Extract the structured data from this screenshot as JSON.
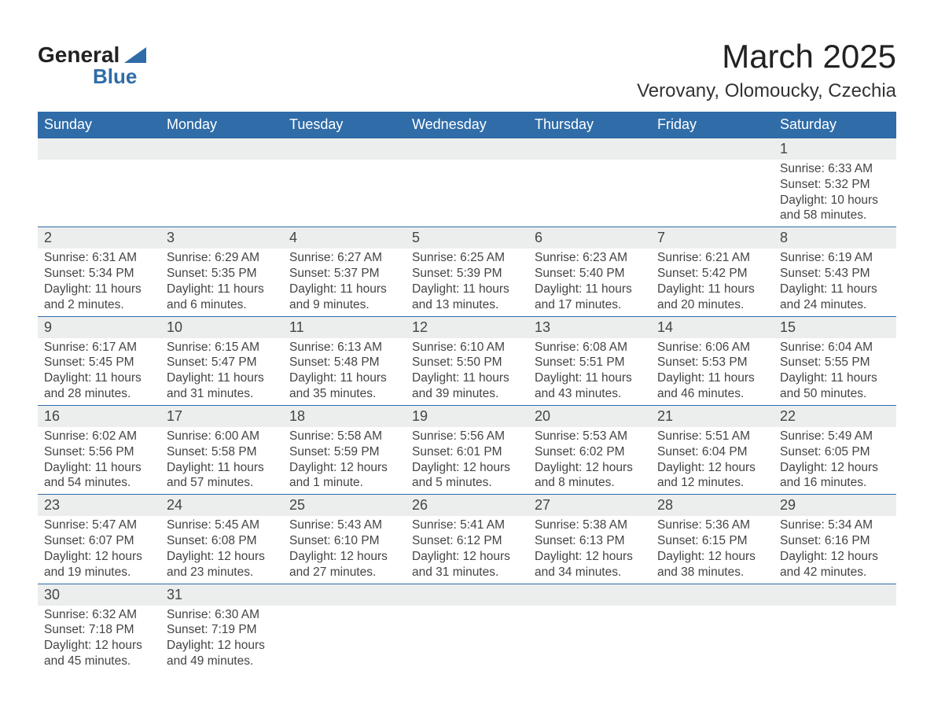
{
  "brand": {
    "name_top": "General",
    "name_bottom": "Blue",
    "accent": "#2f6ca8"
  },
  "title": "March 2025",
  "location": "Verovany, Olomoucky, Czechia",
  "colors": {
    "header_bg": "#2f6ca8",
    "header_fg": "#ffffff",
    "daynum_bg": "#eceeee",
    "text": "#444444",
    "row_border": "#2f6ca8",
    "page_bg": "#ffffff"
  },
  "fonts": {
    "title_pt": 42,
    "location_pt": 24,
    "dayname_pt": 18,
    "daynum_pt": 18,
    "body_pt": 15.5
  },
  "day_names": [
    "Sunday",
    "Monday",
    "Tuesday",
    "Wednesday",
    "Thursday",
    "Friday",
    "Saturday"
  ],
  "labels": {
    "sunrise": "Sunrise:",
    "sunset": "Sunset:",
    "daylight": "Daylight:"
  },
  "weeks": [
    [
      null,
      null,
      null,
      null,
      null,
      null,
      {
        "n": "1",
        "sunrise": "6:33 AM",
        "sunset": "5:32 PM",
        "daylight": "10 hours and 58 minutes."
      }
    ],
    [
      {
        "n": "2",
        "sunrise": "6:31 AM",
        "sunset": "5:34 PM",
        "daylight": "11 hours and 2 minutes."
      },
      {
        "n": "3",
        "sunrise": "6:29 AM",
        "sunset": "5:35 PM",
        "daylight": "11 hours and 6 minutes."
      },
      {
        "n": "4",
        "sunrise": "6:27 AM",
        "sunset": "5:37 PM",
        "daylight": "11 hours and 9 minutes."
      },
      {
        "n": "5",
        "sunrise": "6:25 AM",
        "sunset": "5:39 PM",
        "daylight": "11 hours and 13 minutes."
      },
      {
        "n": "6",
        "sunrise": "6:23 AM",
        "sunset": "5:40 PM",
        "daylight": "11 hours and 17 minutes."
      },
      {
        "n": "7",
        "sunrise": "6:21 AM",
        "sunset": "5:42 PM",
        "daylight": "11 hours and 20 minutes."
      },
      {
        "n": "8",
        "sunrise": "6:19 AM",
        "sunset": "5:43 PM",
        "daylight": "11 hours and 24 minutes."
      }
    ],
    [
      {
        "n": "9",
        "sunrise": "6:17 AM",
        "sunset": "5:45 PM",
        "daylight": "11 hours and 28 minutes."
      },
      {
        "n": "10",
        "sunrise": "6:15 AM",
        "sunset": "5:47 PM",
        "daylight": "11 hours and 31 minutes."
      },
      {
        "n": "11",
        "sunrise": "6:13 AM",
        "sunset": "5:48 PM",
        "daylight": "11 hours and 35 minutes."
      },
      {
        "n": "12",
        "sunrise": "6:10 AM",
        "sunset": "5:50 PM",
        "daylight": "11 hours and 39 minutes."
      },
      {
        "n": "13",
        "sunrise": "6:08 AM",
        "sunset": "5:51 PM",
        "daylight": "11 hours and 43 minutes."
      },
      {
        "n": "14",
        "sunrise": "6:06 AM",
        "sunset": "5:53 PM",
        "daylight": "11 hours and 46 minutes."
      },
      {
        "n": "15",
        "sunrise": "6:04 AM",
        "sunset": "5:55 PM",
        "daylight": "11 hours and 50 minutes."
      }
    ],
    [
      {
        "n": "16",
        "sunrise": "6:02 AM",
        "sunset": "5:56 PM",
        "daylight": "11 hours and 54 minutes."
      },
      {
        "n": "17",
        "sunrise": "6:00 AM",
        "sunset": "5:58 PM",
        "daylight": "11 hours and 57 minutes."
      },
      {
        "n": "18",
        "sunrise": "5:58 AM",
        "sunset": "5:59 PM",
        "daylight": "12 hours and 1 minute."
      },
      {
        "n": "19",
        "sunrise": "5:56 AM",
        "sunset": "6:01 PM",
        "daylight": "12 hours and 5 minutes."
      },
      {
        "n": "20",
        "sunrise": "5:53 AM",
        "sunset": "6:02 PM",
        "daylight": "12 hours and 8 minutes."
      },
      {
        "n": "21",
        "sunrise": "5:51 AM",
        "sunset": "6:04 PM",
        "daylight": "12 hours and 12 minutes."
      },
      {
        "n": "22",
        "sunrise": "5:49 AM",
        "sunset": "6:05 PM",
        "daylight": "12 hours and 16 minutes."
      }
    ],
    [
      {
        "n": "23",
        "sunrise": "5:47 AM",
        "sunset": "6:07 PM",
        "daylight": "12 hours and 19 minutes."
      },
      {
        "n": "24",
        "sunrise": "5:45 AM",
        "sunset": "6:08 PM",
        "daylight": "12 hours and 23 minutes."
      },
      {
        "n": "25",
        "sunrise": "5:43 AM",
        "sunset": "6:10 PM",
        "daylight": "12 hours and 27 minutes."
      },
      {
        "n": "26",
        "sunrise": "5:41 AM",
        "sunset": "6:12 PM",
        "daylight": "12 hours and 31 minutes."
      },
      {
        "n": "27",
        "sunrise": "5:38 AM",
        "sunset": "6:13 PM",
        "daylight": "12 hours and 34 minutes."
      },
      {
        "n": "28",
        "sunrise": "5:36 AM",
        "sunset": "6:15 PM",
        "daylight": "12 hours and 38 minutes."
      },
      {
        "n": "29",
        "sunrise": "5:34 AM",
        "sunset": "6:16 PM",
        "daylight": "12 hours and 42 minutes."
      }
    ],
    [
      {
        "n": "30",
        "sunrise": "6:32 AM",
        "sunset": "7:18 PM",
        "daylight": "12 hours and 45 minutes."
      },
      {
        "n": "31",
        "sunrise": "6:30 AM",
        "sunset": "7:19 PM",
        "daylight": "12 hours and 49 minutes."
      },
      null,
      null,
      null,
      null,
      null
    ]
  ]
}
